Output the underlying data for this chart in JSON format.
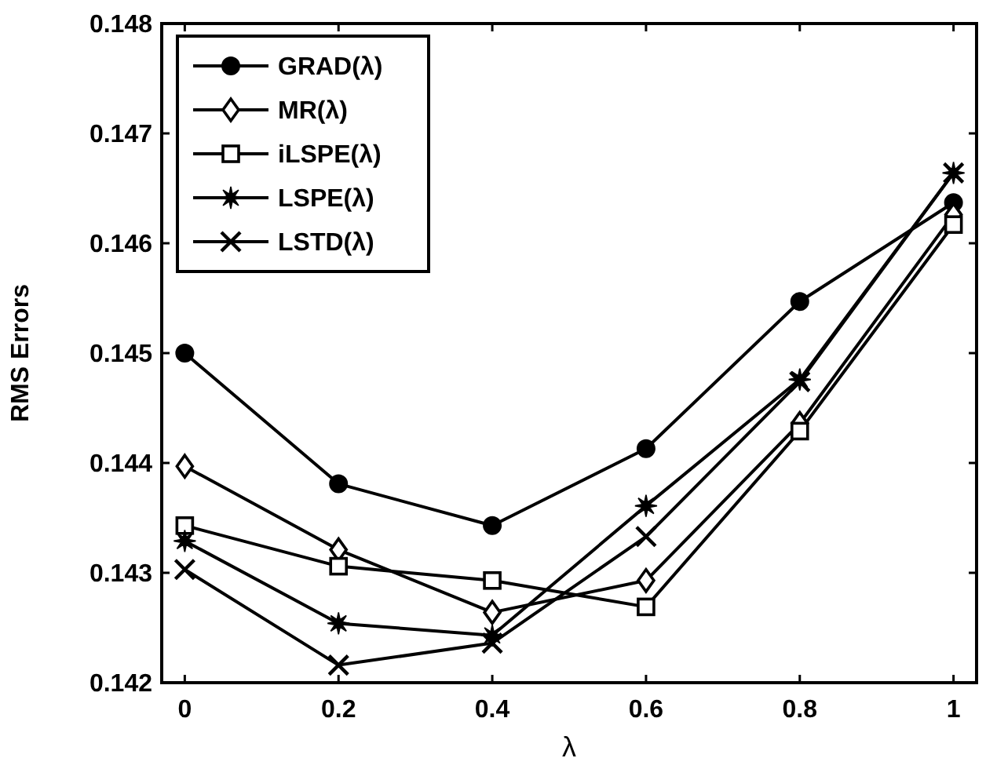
{
  "chart_data": {
    "type": "line",
    "xlabel": "λ",
    "ylabel": "RMS Errors",
    "x": [
      0,
      0.2,
      0.4,
      0.6,
      0.8,
      1
    ],
    "xlim": [
      -0.03,
      1.03
    ],
    "xticks": [
      0,
      0.2,
      0.4,
      0.6,
      0.8,
      1
    ],
    "ylim": [
      0.142,
      0.148
    ],
    "yticks": [
      0.142,
      0.143,
      0.144,
      0.145,
      0.146,
      0.147,
      0.148
    ],
    "grid": false,
    "legend": "top left",
    "line_style": "solid",
    "series": [
      {
        "name": "GRAD(λ)",
        "color": "#000000",
        "marker": "circle",
        "values": [
          0.145,
          0.14381,
          0.14343,
          0.14413,
          0.14547,
          0.14637
        ]
      },
      {
        "name": "MR(λ)",
        "color": "#000000",
        "marker": "diamond",
        "values": [
          0.14397,
          0.14321,
          0.14264,
          0.14293,
          0.14436,
          0.14626
        ]
      },
      {
        "name": "iLSPE(λ)",
        "color": "#000000",
        "marker": "square",
        "values": [
          0.14343,
          0.14306,
          0.14293,
          0.14269,
          0.14429,
          0.14617
        ]
      },
      {
        "name": "LSPE(λ)",
        "color": "#000000",
        "marker": "star",
        "values": [
          0.14329,
          0.14254,
          0.14243,
          0.14361,
          0.14476,
          0.14664
        ]
      },
      {
        "name": "LSTD(λ)",
        "color": "#000000",
        "marker": "cross",
        "values": [
          0.14303,
          0.14216,
          0.14236,
          0.14333,
          0.14474,
          0.14664
        ]
      }
    ]
  }
}
